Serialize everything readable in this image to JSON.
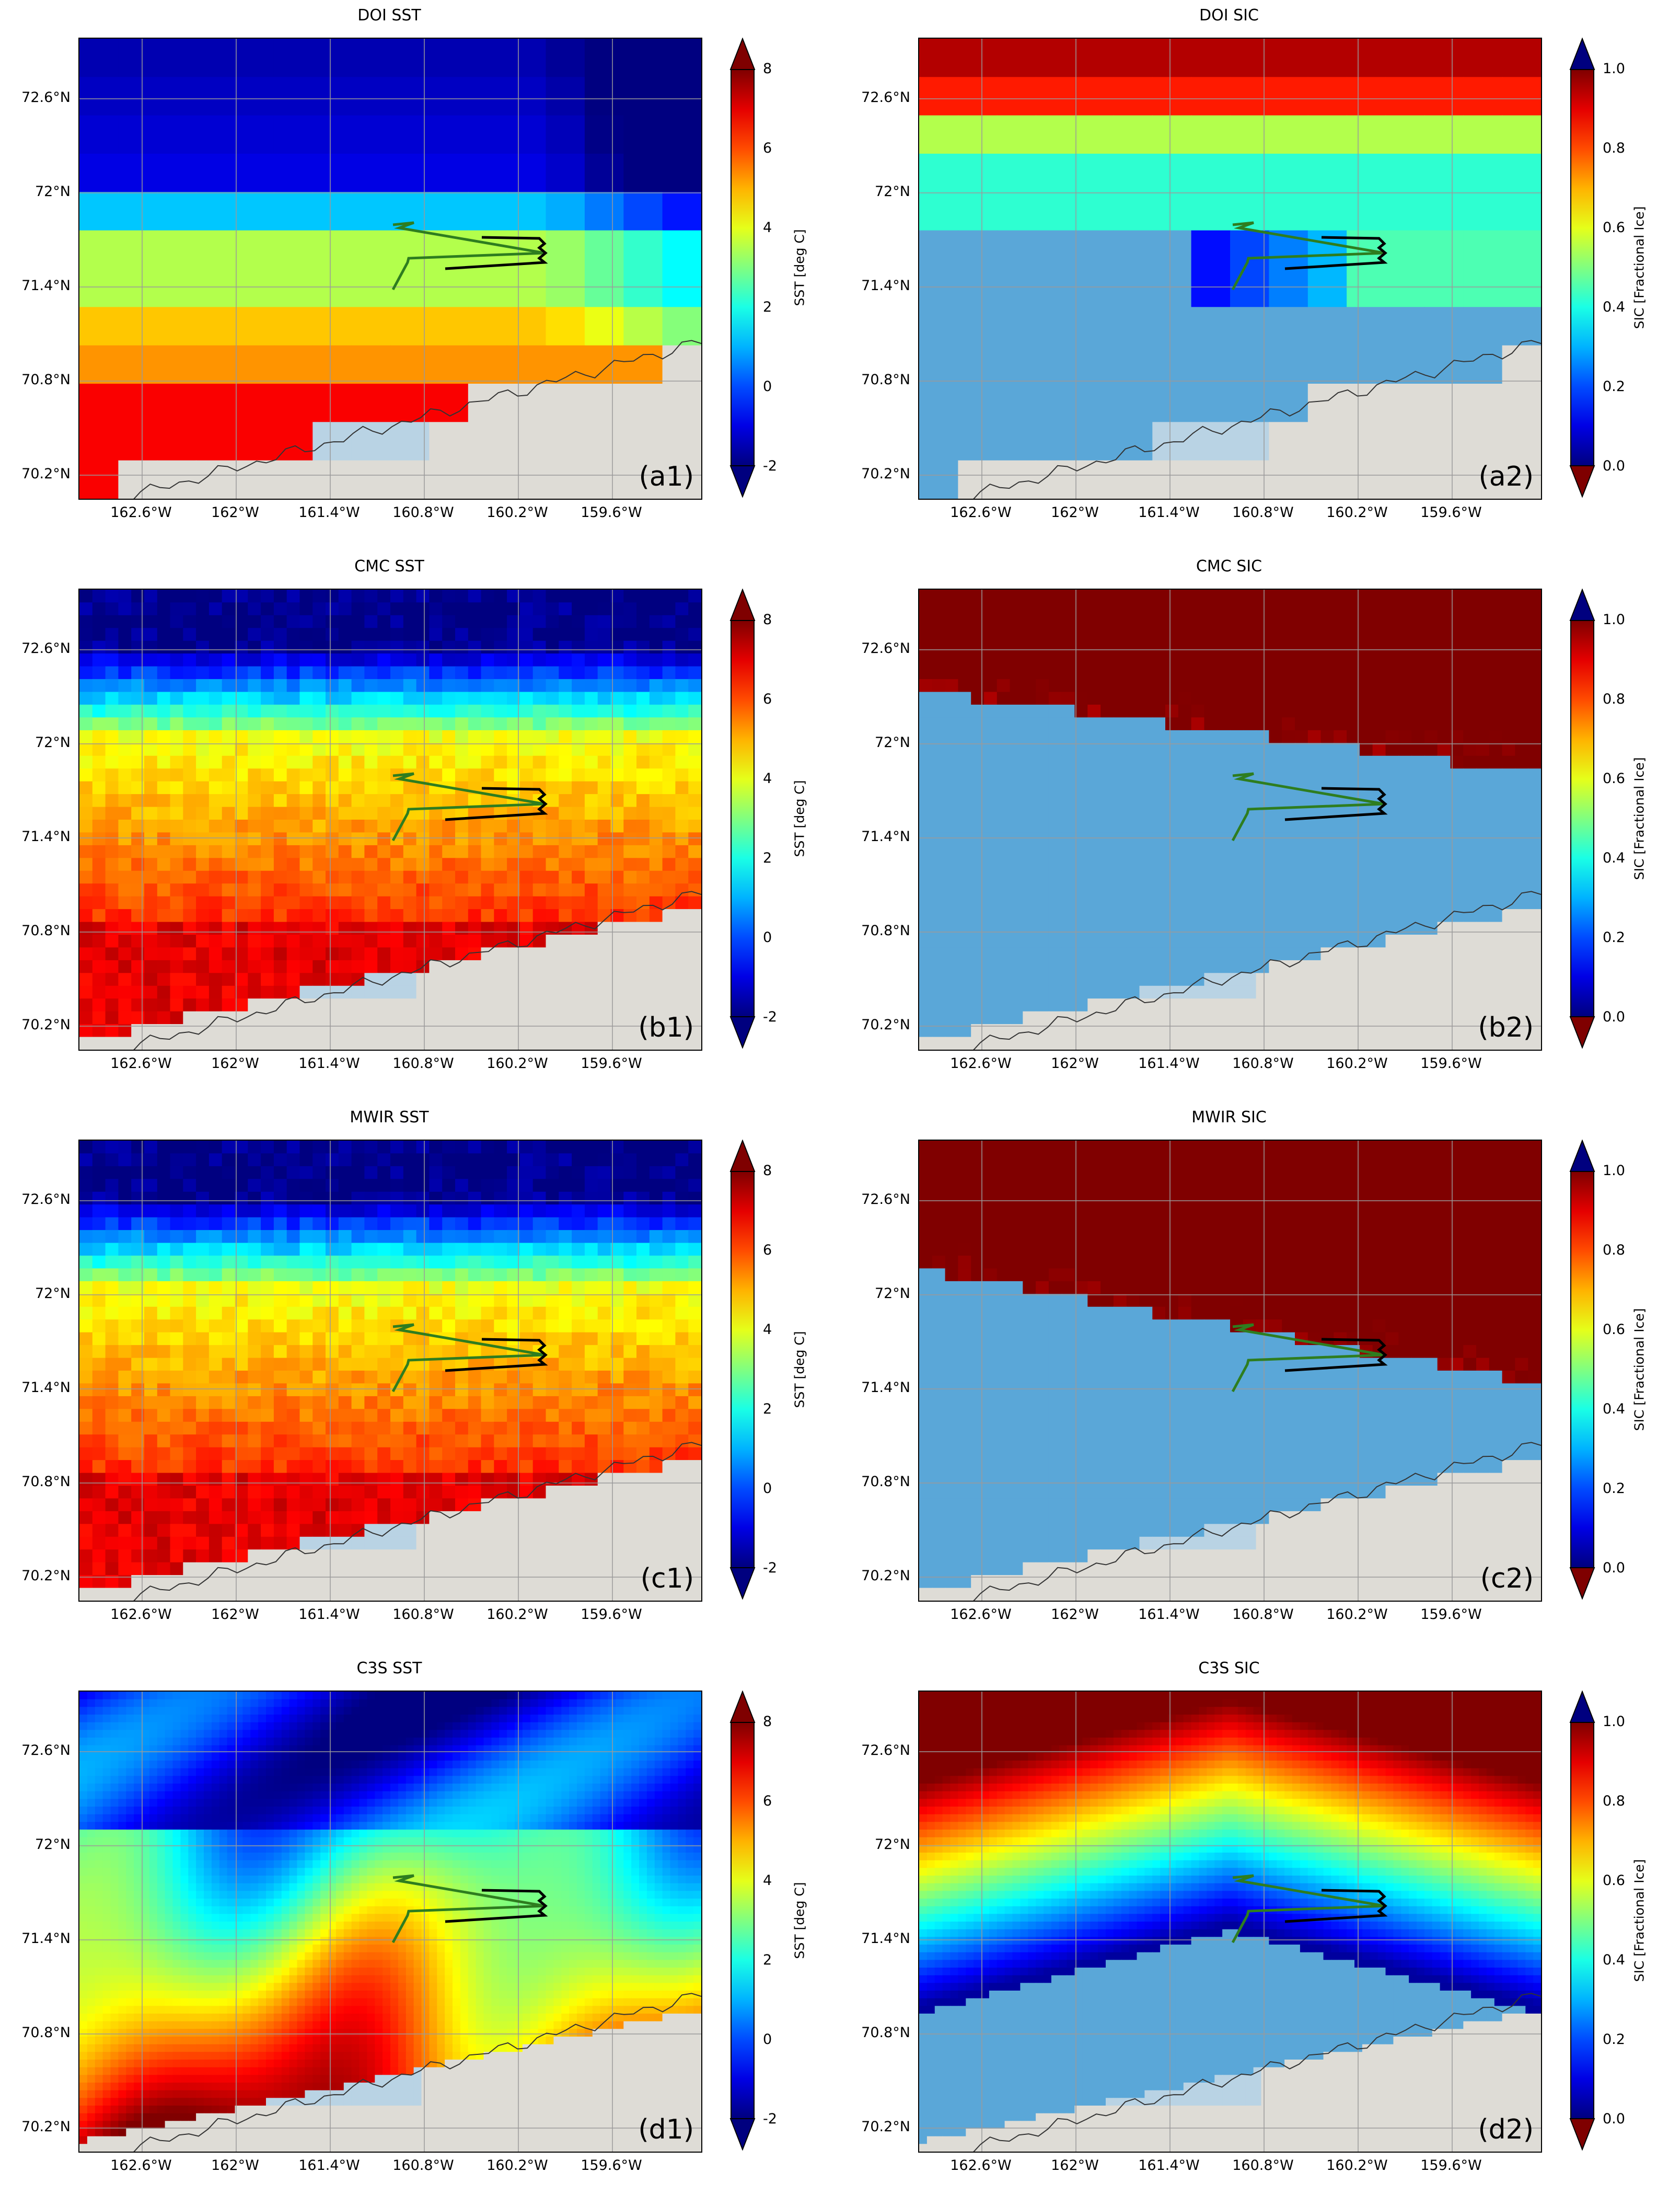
{
  "panels": [
    {
      "title": "DOI SST",
      "tag": "(a1)",
      "kind": "sst",
      "style": "blocky",
      "grid": [
        16,
        12
      ],
      "row": 0,
      "col": 0
    },
    {
      "title": "DOI SIC",
      "tag": "(a2)",
      "kind": "sic",
      "style": "blocky",
      "grid": [
        16,
        12
      ],
      "row": 0,
      "col": 1
    },
    {
      "title": "CMC SST",
      "tag": "(b1)",
      "kind": "sst",
      "style": "fine",
      "grid": [
        48,
        36
      ],
      "row": 1,
      "col": 0
    },
    {
      "title": "CMC SIC",
      "tag": "(b2)",
      "kind": "sic",
      "style": "fine",
      "grid": [
        48,
        36
      ],
      "row": 1,
      "col": 1
    },
    {
      "title": "MWIR SST",
      "tag": "(c1)",
      "kind": "sst",
      "style": "fine",
      "grid": [
        48,
        36
      ],
      "row": 2,
      "col": 0
    },
    {
      "title": "MWIR SIC",
      "tag": "(c2)",
      "kind": "sic",
      "style": "fine",
      "grid": [
        48,
        36
      ],
      "row": 2,
      "col": 1
    },
    {
      "title": "C3S SST",
      "tag": "(d1)",
      "kind": "sst",
      "style": "smooth",
      "grid": [
        80,
        60
      ],
      "row": 3,
      "col": 0
    },
    {
      "title": "C3S SIC",
      "tag": "(d2)",
      "kind": "sic",
      "style": "smooth",
      "grid": [
        80,
        60
      ],
      "row": 3,
      "col": 1
    }
  ],
  "lat_labels": [
    "72.6°N",
    "72°N",
    "71.4°N",
    "70.8°N",
    "70.2°N"
  ],
  "lon_labels": [
    "162.6°W",
    "162°W",
    "161.4°W",
    "160.8°W",
    "160.2°W",
    "159.6°W"
  ],
  "colorbars": {
    "sst": {
      "label": "SST [deg C]",
      "ticks": [
        "8",
        "6",
        "4",
        "2",
        "0",
        "-2"
      ],
      "min": -2,
      "max": 8
    },
    "sic": {
      "label": "SIC [Fractional Ice]",
      "ticks": [
        "1.0",
        "0.8",
        "0.6",
        "0.4",
        "0.2",
        "0.0"
      ],
      "min": 0,
      "max": 1
    }
  },
  "colors": {
    "land": "#dedcd6",
    "land_shadow": "#b9d3e4",
    "ice_water": "#5aa7d8",
    "flight_track": "#2e7d1f",
    "flight_track_end": "#000000",
    "gridline": "#9a9a9a"
  }
}
